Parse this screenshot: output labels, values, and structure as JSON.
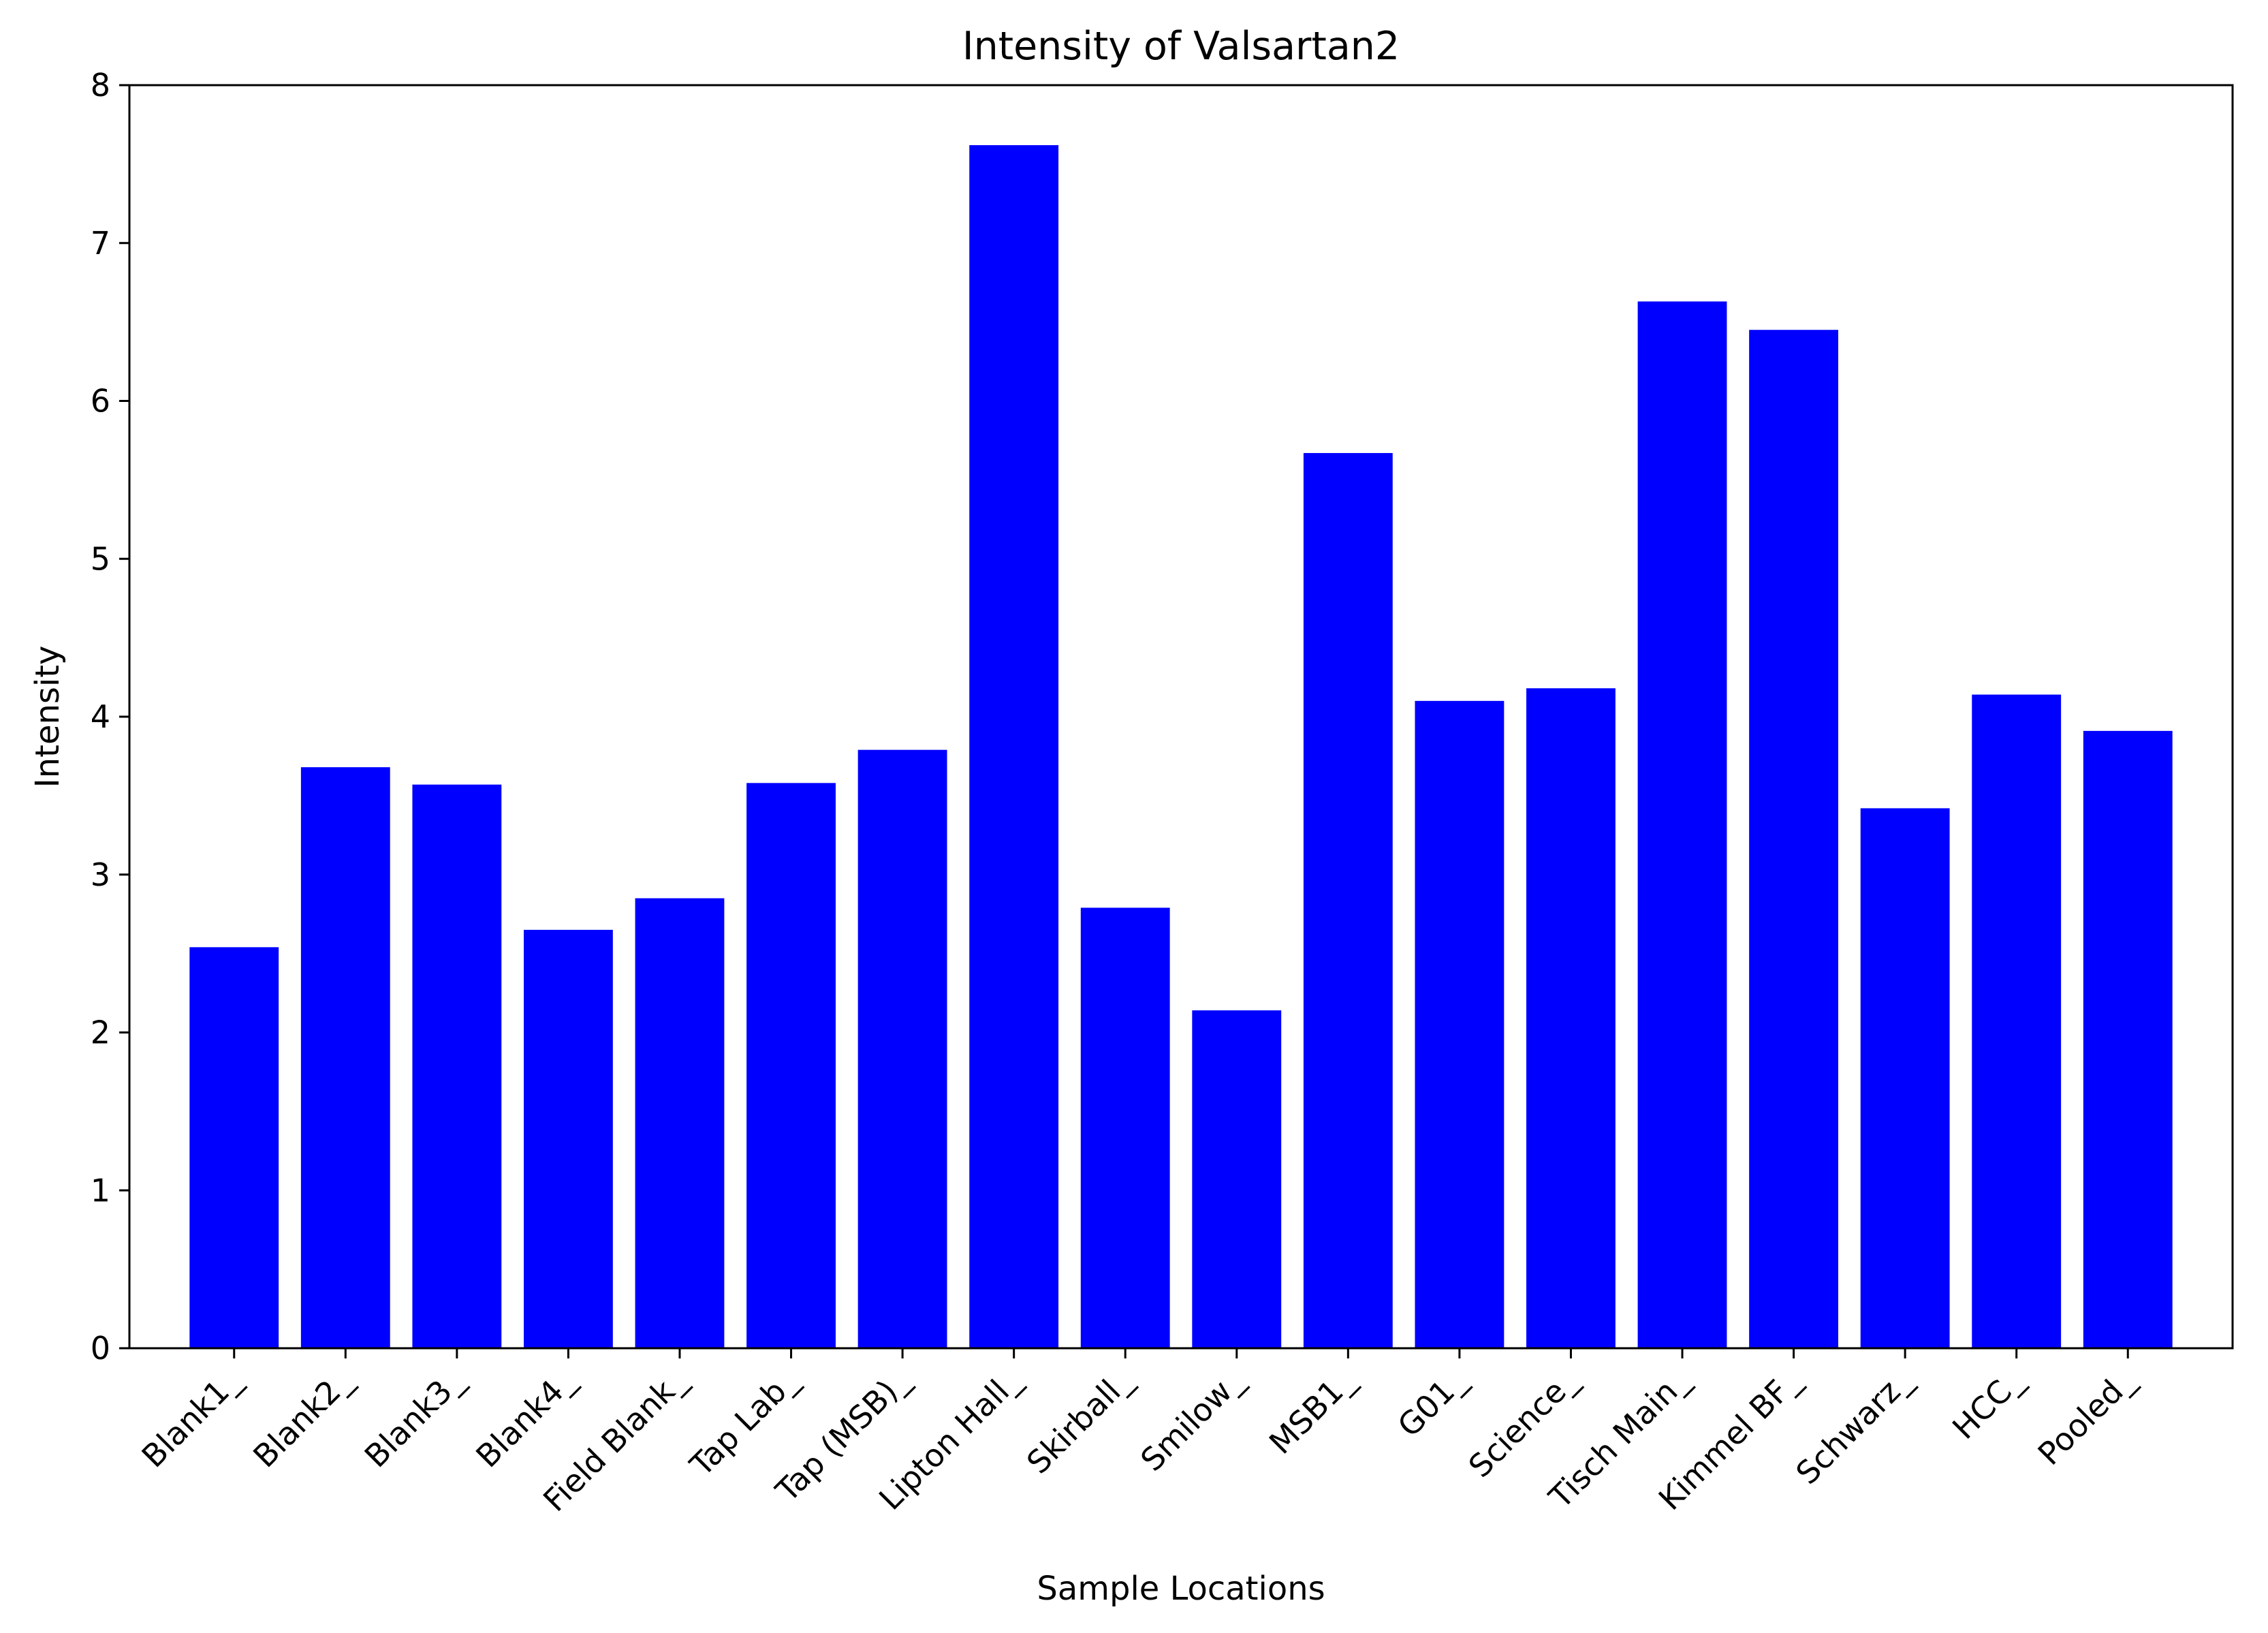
{
  "chart_data": {
    "type": "bar",
    "title": "Intensity of Valsartan2",
    "xlabel": "Sample Locations",
    "ylabel": "Intensity",
    "categories": [
      "Blank1_",
      "Blank2_",
      "Blank3_",
      "Blank4_",
      "Field Blank_",
      "Tap Lab_",
      "Tap (MSB)_",
      "Lipton Hall_",
      "Skirball_",
      "Smilow_",
      "MSB1_",
      "G01_",
      "Science_",
      "Tisch Main_",
      "Kimmel BF_",
      "Schwarz_",
      "HCC_",
      "Pooled_"
    ],
    "values": [
      2.54,
      3.68,
      3.57,
      2.65,
      2.85,
      3.58,
      3.79,
      7.62,
      2.79,
      2.14,
      5.67,
      4.1,
      4.18,
      6.63,
      6.45,
      3.42,
      4.14,
      3.91
    ],
    "ylim": [
      0,
      8
    ],
    "yticks": [
      "0",
      "1",
      "2",
      "3",
      "4",
      "5",
      "6",
      "7",
      "8"
    ],
    "bar_color": "#0000ff",
    "grid": false,
    "legend": "none"
  }
}
